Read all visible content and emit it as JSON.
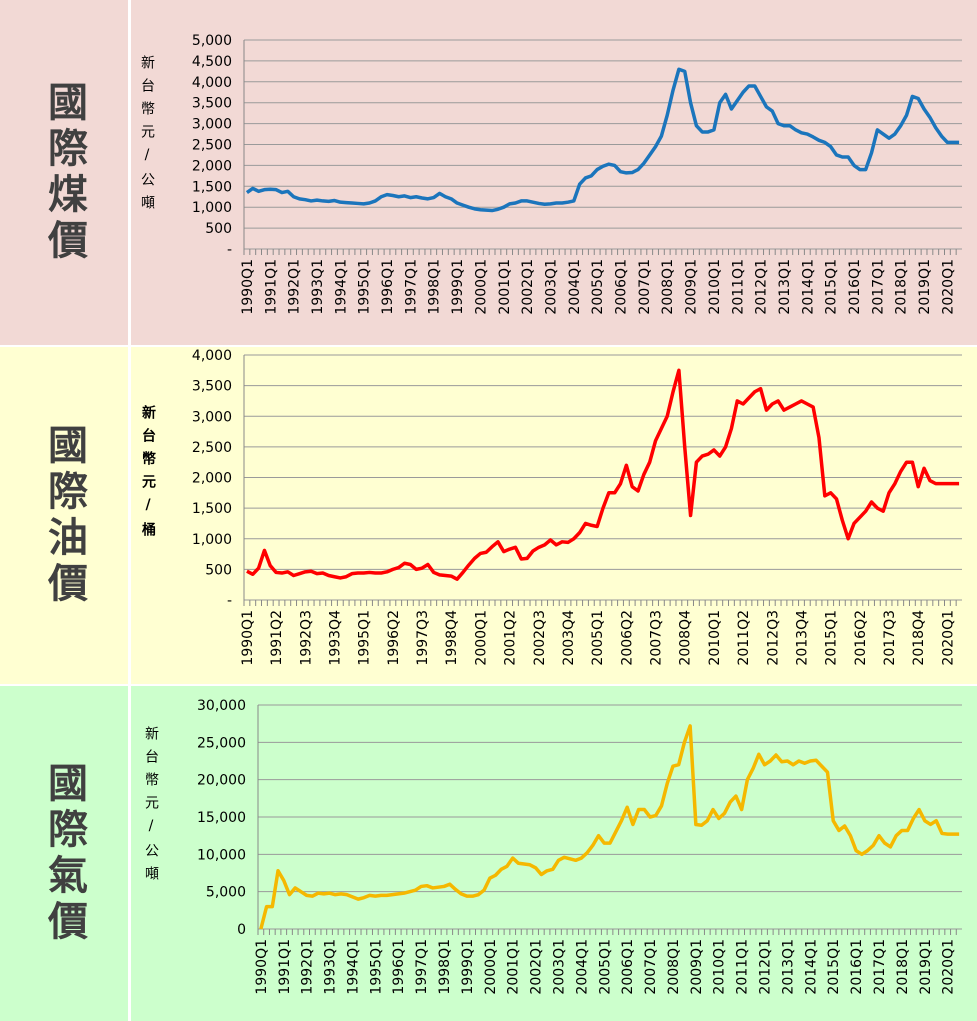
{
  "chart_data": [
    {
      "type": "line",
      "title": "國際煤價",
      "y_label": "新台幣元/公噸",
      "color": "#1b75bc",
      "ylim": [
        0,
        5000
      ],
      "yticks": [
        {
          "value": 0,
          "label": "-"
        },
        500,
        {
          "value": 1000,
          "label": "1,000"
        },
        {
          "value": 1500,
          "label": "1,500"
        },
        {
          "value": 2000,
          "label": "2,000"
        },
        {
          "value": 2500,
          "label": "2,500"
        },
        {
          "value": 3000,
          "label": "3,000"
        },
        {
          "value": 3500,
          "label": "3,500"
        },
        {
          "value": 4000,
          "label": "4,000"
        },
        {
          "value": 4500,
          "label": "4,500"
        },
        {
          "value": 5000,
          "label": "5,000"
        }
      ],
      "grid": true,
      "categories": [
        "1990Q1",
        null,
        null,
        null,
        "1991Q1",
        null,
        null,
        null,
        "1992Q1",
        null,
        null,
        null,
        "1993Q1",
        null,
        null,
        null,
        "1994Q1",
        null,
        null,
        null,
        "1995Q1",
        null,
        null,
        null,
        "1996Q1",
        null,
        null,
        null,
        "1997Q1",
        null,
        null,
        null,
        "1998Q1",
        null,
        null,
        null,
        "1999Q1",
        null,
        null,
        null,
        "2000Q1",
        null,
        null,
        null,
        "2001Q1",
        null,
        null,
        null,
        "2002Q1",
        null,
        null,
        null,
        "2003Q1",
        null,
        null,
        null,
        "2004Q1",
        null,
        null,
        null,
        "2005Q1",
        null,
        null,
        null,
        "2006Q1",
        null,
        null,
        null,
        "2007Q1",
        null,
        null,
        null,
        "2008Q1",
        null,
        null,
        null,
        "2009Q1",
        null,
        null,
        null,
        "2010Q1",
        null,
        null,
        null,
        "2011Q1",
        null,
        null,
        null,
        "2012Q1",
        null,
        null,
        null,
        "2013Q1",
        null,
        null,
        null,
        "2014Q1",
        null,
        null,
        null,
        "2015Q1",
        null,
        null,
        null,
        "2016Q1",
        null,
        null,
        null,
        "2017Q1",
        null,
        null,
        null,
        "2018Q1",
        null,
        null,
        null,
        "2019Q1",
        null,
        null,
        null,
        "2020Q1",
        null,
        null
      ],
      "values": [
        1350,
        1450,
        1380,
        1420,
        1430,
        1420,
        1350,
        1380,
        1250,
        1200,
        1180,
        1150,
        1170,
        1150,
        1140,
        1160,
        1120,
        1110,
        1100,
        1090,
        1080,
        1100,
        1150,
        1250,
        1300,
        1280,
        1250,
        1270,
        1230,
        1250,
        1220,
        1200,
        1230,
        1330,
        1250,
        1200,
        1100,
        1050,
        1000,
        960,
        940,
        930,
        920,
        950,
        1000,
        1080,
        1100,
        1150,
        1150,
        1120,
        1090,
        1070,
        1080,
        1100,
        1100,
        1120,
        1150,
        1550,
        1700,
        1750,
        1900,
        1980,
        2030,
        2000,
        1850,
        1820,
        1830,
        1900,
        2050,
        2250,
        2450,
        2700,
        3200,
        3800,
        4300,
        4250,
        3500,
        2950,
        2800,
        2800,
        2850,
        3500,
        3700,
        3350,
        3550,
        3750,
        3900,
        3900,
        3650,
        3400,
        3300,
        3000,
        2950,
        2950,
        2850,
        2780,
        2750,
        2680,
        2600,
        2550,
        2450,
        2250,
        2200,
        2200,
        2000,
        1900,
        1900,
        2300,
        2850,
        2750,
        2650,
        2750,
        2950,
        3200,
        3650,
        3600,
        3350,
        3150,
        2900,
        2700,
        2550,
        2550,
        2550
      ]
    },
    {
      "type": "line",
      "title": "國際油價",
      "y_label": "新台幣元/桶",
      "color": "#ff0000",
      "ylim": [
        0,
        4000
      ],
      "yticks": [
        {
          "value": 0,
          "label": "-"
        },
        500,
        {
          "value": 1000,
          "label": "1,000"
        },
        {
          "value": 1500,
          "label": "1,500"
        },
        {
          "value": 2000,
          "label": "2,000"
        },
        {
          "value": 2500,
          "label": "2,500"
        },
        {
          "value": 3000,
          "label": "3,000"
        },
        {
          "value": 3500,
          "label": "3,500"
        },
        {
          "value": 4000,
          "label": "4,000"
        }
      ],
      "grid": true,
      "categories": [
        "1990Q1",
        null,
        null,
        null,
        null,
        "1991Q2",
        null,
        null,
        null,
        null,
        "1992Q3",
        null,
        null,
        null,
        null,
        "1993Q4",
        null,
        null,
        null,
        null,
        "1995Q1",
        null,
        null,
        null,
        null,
        "1996Q2",
        null,
        null,
        null,
        null,
        "1997Q3",
        null,
        null,
        null,
        null,
        "1998Q4",
        null,
        null,
        null,
        null,
        "2000Q1",
        null,
        null,
        null,
        null,
        "2001Q2",
        null,
        null,
        null,
        null,
        "2002Q3",
        null,
        null,
        null,
        null,
        "2003Q4",
        null,
        null,
        null,
        null,
        "2005Q1",
        null,
        null,
        null,
        null,
        "2006Q2",
        null,
        null,
        null,
        null,
        "2007Q3",
        null,
        null,
        null,
        null,
        "2008Q4",
        null,
        null,
        null,
        null,
        "2010Q1",
        null,
        null,
        null,
        null,
        "2011Q2",
        null,
        null,
        null,
        null,
        "2012Q3",
        null,
        null,
        null,
        null,
        "2013Q4",
        null,
        null,
        null,
        null,
        "2015Q1",
        null,
        null,
        null,
        null,
        "2016Q2",
        null,
        null,
        null,
        null,
        "2017Q3",
        null,
        null,
        null,
        null,
        "2018Q4",
        null,
        null,
        null,
        null,
        "2020Q1",
        null,
        null
      ],
      "values": [
        470,
        420,
        520,
        810,
        560,
        450,
        440,
        460,
        400,
        430,
        460,
        470,
        430,
        440,
        400,
        380,
        360,
        380,
        430,
        440,
        440,
        450,
        440,
        440,
        460,
        500,
        530,
        600,
        580,
        500,
        520,
        580,
        450,
        410,
        400,
        390,
        340,
        450,
        570,
        680,
        760,
        780,
        870,
        950,
        790,
        830,
        860,
        670,
        680,
        800,
        860,
        900,
        980,
        900,
        950,
        940,
        1000,
        1100,
        1250,
        1220,
        1200,
        1500,
        1750,
        1750,
        1900,
        2200,
        1850,
        1780,
        2050,
        2250,
        2600,
        2800,
        3000,
        3400,
        3750,
        2500,
        1380,
        2250,
        2350,
        2380,
        2450,
        2350,
        2500,
        2800,
        3250,
        3200,
        3300,
        3400,
        3450,
        3100,
        3200,
        3250,
        3100,
        3150,
        3200,
        3250,
        3200,
        3150,
        2650,
        1700,
        1750,
        1650,
        1300,
        1000,
        1250,
        1350,
        1450,
        1600,
        1500,
        1450,
        1750,
        1900,
        2100,
        2250,
        2250,
        1850,
        2150,
        1950,
        1900,
        1900,
        1900,
        1900,
        1900
      ]
    },
    {
      "type": "line",
      "title": "國際氣價",
      "y_label": "新台幣元/公噸",
      "color": "#f5b800",
      "ylim": [
        0,
        30000
      ],
      "yticks": [
        0,
        {
          "value": 5000,
          "label": "5,000"
        },
        {
          "value": 10000,
          "label": "10,000"
        },
        {
          "value": 15000,
          "label": "15,000"
        },
        {
          "value": 20000,
          "label": "20,000"
        },
        {
          "value": 25000,
          "label": "25,000"
        },
        {
          "value": 30000,
          "label": "30,000"
        }
      ],
      "grid": true,
      "categories": [
        "1990Q1",
        null,
        null,
        null,
        "1991Q1",
        null,
        null,
        null,
        "1992Q1",
        null,
        null,
        null,
        "1993Q1",
        null,
        null,
        null,
        "1994Q1",
        null,
        null,
        null,
        "1995Q1",
        null,
        null,
        null,
        "1996Q1",
        null,
        null,
        null,
        "1997Q1",
        null,
        null,
        null,
        "1998Q1",
        null,
        null,
        null,
        "1999Q1",
        null,
        null,
        null,
        "2000Q1",
        null,
        null,
        null,
        "2001Q1",
        null,
        null,
        null,
        "2002Q1",
        null,
        null,
        null,
        "2003Q1",
        null,
        null,
        null,
        "2004Q1",
        null,
        null,
        null,
        "2005Q1",
        null,
        null,
        null,
        "2006Q1",
        null,
        null,
        null,
        "2007Q1",
        null,
        null,
        null,
        "2008Q1",
        null,
        null,
        null,
        "2009Q1",
        null,
        null,
        null,
        "2010Q1",
        null,
        null,
        null,
        "2011Q1",
        null,
        null,
        null,
        "2012Q1",
        null,
        null,
        null,
        "2013Q1",
        null,
        null,
        null,
        "2014Q1",
        null,
        null,
        null,
        "2015Q1",
        null,
        null,
        null,
        "2016Q1",
        null,
        null,
        null,
        "2017Q1",
        null,
        null,
        null,
        "2018Q1",
        null,
        null,
        null,
        "2019Q1",
        null,
        null,
        null,
        "2020Q1",
        null,
        null
      ],
      "values": [
        0,
        3000,
        3000,
        7800,
        6500,
        4600,
        5500,
        5000,
        4500,
        4400,
        4800,
        4700,
        4800,
        4600,
        4700,
        4600,
        4300,
        4000,
        4200,
        4500,
        4400,
        4500,
        4500,
        4600,
        4700,
        4800,
        5000,
        5200,
        5700,
        5800,
        5500,
        5600,
        5700,
        6000,
        5300,
        4700,
        4400,
        4400,
        4600,
        5200,
        6800,
        7200,
        8000,
        8400,
        9500,
        8800,
        8700,
        8600,
        8200,
        7300,
        7800,
        8000,
        9200,
        9600,
        9400,
        9200,
        9500,
        10200,
        11200,
        12500,
        11500,
        11500,
        13000,
        14500,
        16300,
        14000,
        16000,
        16000,
        15000,
        15200,
        16500,
        19500,
        21800,
        22000,
        25000,
        27200,
        14000,
        13900,
        14500,
        16000,
        14800,
        15500,
        17000,
        17800,
        16000,
        20000,
        21500,
        23400,
        22000,
        22500,
        23300,
        22400,
        22500,
        22000,
        22500,
        22200,
        22500,
        22600,
        21800,
        21000,
        14500,
        13200,
        13800,
        12500,
        10500,
        10000,
        10500,
        11200,
        12500,
        11500,
        11000,
        12500,
        13200,
        13200,
        14800,
        16000,
        14500,
        14000,
        14500,
        12800,
        12700,
        12700,
        12700
      ]
    }
  ]
}
